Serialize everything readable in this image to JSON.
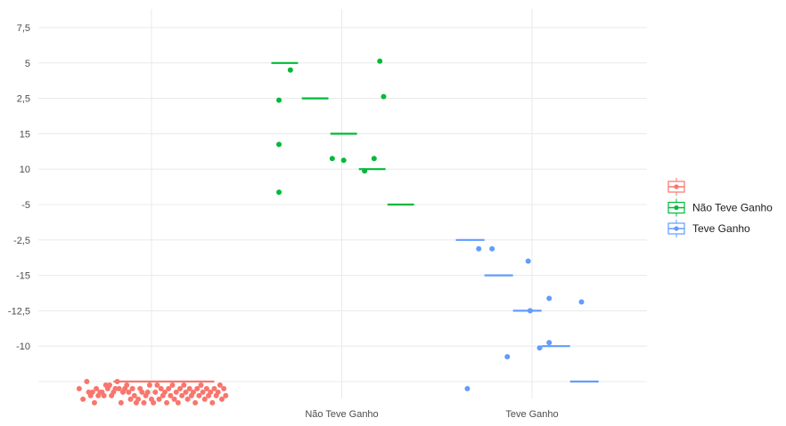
{
  "chart_data": {
    "type": "scatter",
    "title": "",
    "xlabel": "",
    "ylabel": "",
    "grid": true,
    "legend_position": "right",
    "categories": [
      "",
      "Não Teve Ganho",
      "Teve Ganho"
    ],
    "y_ticks": [
      "7,5",
      "5",
      "2,5",
      "15",
      "10",
      "-5",
      "-2,5",
      "-15",
      "-12,5",
      "-10",
      ""
    ],
    "series": [
      {
        "name": "",
        "color": "#F8766D",
        "category": "",
        "points": [
          {
            "x": -0.38,
            "level": 10.2
          },
          {
            "x": -0.36,
            "level": 10.5
          },
          {
            "x": -0.34,
            "level": 10.0
          },
          {
            "x": -0.33,
            "level": 10.3
          },
          {
            "x": -0.32,
            "level": 10.4
          },
          {
            "x": -0.31,
            "level": 10.3
          },
          {
            "x": -0.3,
            "level": 10.6
          },
          {
            "x": -0.29,
            "level": 10.2
          },
          {
            "x": -0.28,
            "level": 10.4
          },
          {
            "x": -0.27,
            "level": 10.3
          },
          {
            "x": -0.26,
            "level": 10.3
          },
          {
            "x": -0.25,
            "level": 10.4
          },
          {
            "x": -0.24,
            "level": 10.1
          },
          {
            "x": -0.23,
            "level": 10.2
          },
          {
            "x": -0.22,
            "level": 10.1
          },
          {
            "x": -0.21,
            "level": 10.4
          },
          {
            "x": -0.2,
            "level": 10.3
          },
          {
            "x": -0.19,
            "level": 10.2
          },
          {
            "x": -0.18,
            "level": 10.0
          },
          {
            "x": -0.17,
            "level": 10.2
          },
          {
            "x": -0.16,
            "level": 10.6
          },
          {
            "x": -0.15,
            "level": 10.3
          },
          {
            "x": -0.14,
            "level": 10.2
          },
          {
            "x": -0.13,
            "level": 10.1
          },
          {
            "x": -0.12,
            "level": 10.3
          },
          {
            "x": -0.11,
            "level": 10.5
          },
          {
            "x": -0.1,
            "level": 10.2
          },
          {
            "x": -0.09,
            "level": 10.4
          },
          {
            "x": -0.08,
            "level": 10.6
          },
          {
            "x": -0.07,
            "level": 10.5
          },
          {
            "x": -0.06,
            "level": 10.2
          },
          {
            "x": -0.05,
            "level": 10.3
          },
          {
            "x": -0.04,
            "level": 10.6
          },
          {
            "x": -0.03,
            "level": 10.4
          },
          {
            "x": -0.02,
            "level": 10.3
          },
          {
            "x": -0.01,
            "level": 10.1
          },
          {
            "x": 0.0,
            "level": 10.5
          },
          {
            "x": 0.01,
            "level": 10.6
          },
          {
            "x": 0.02,
            "level": 10.3
          },
          {
            "x": 0.03,
            "level": 10.1
          },
          {
            "x": 0.04,
            "level": 10.5
          },
          {
            "x": 0.05,
            "level": 10.2
          },
          {
            "x": 0.06,
            "level": 10.4
          },
          {
            "x": 0.07,
            "level": 10.3
          },
          {
            "x": 0.08,
            "level": 10.6
          },
          {
            "x": 0.09,
            "level": 10.2
          },
          {
            "x": 0.1,
            "level": 10.4
          },
          {
            "x": 0.11,
            "level": 10.1
          },
          {
            "x": 0.12,
            "level": 10.5
          },
          {
            "x": 0.13,
            "level": 10.3
          },
          {
            "x": 0.14,
            "level": 10.6
          },
          {
            "x": 0.15,
            "level": 10.2
          },
          {
            "x": 0.16,
            "level": 10.4
          },
          {
            "x": 0.17,
            "level": 10.1
          },
          {
            "x": 0.18,
            "level": 10.3
          },
          {
            "x": 0.19,
            "level": 10.5
          },
          {
            "x": 0.2,
            "level": 10.2
          },
          {
            "x": 0.21,
            "level": 10.4
          },
          {
            "x": 0.22,
            "level": 10.3
          },
          {
            "x": 0.23,
            "level": 10.6
          },
          {
            "x": 0.24,
            "level": 10.2
          },
          {
            "x": 0.25,
            "level": 10.4
          },
          {
            "x": 0.26,
            "level": 10.1
          },
          {
            "x": 0.27,
            "level": 10.3
          },
          {
            "x": 0.28,
            "level": 10.5
          },
          {
            "x": 0.29,
            "level": 10.2
          },
          {
            "x": 0.3,
            "level": 10.4
          },
          {
            "x": 0.31,
            "level": 10.3
          },
          {
            "x": 0.32,
            "level": 10.6
          },
          {
            "x": 0.33,
            "level": 10.2
          },
          {
            "x": 0.34,
            "level": 10.4
          },
          {
            "x": 0.35,
            "level": 10.3
          },
          {
            "x": 0.36,
            "level": 10.1
          },
          {
            "x": 0.37,
            "level": 10.5
          },
          {
            "x": 0.38,
            "level": 10.2
          },
          {
            "x": 0.39,
            "level": 10.4
          }
        ],
        "medians": [
          {
            "x0": -0.2,
            "x1": 0.33,
            "level": 10.0
          }
        ]
      },
      {
        "name": "Não Teve Ganho",
        "color": "#00BA38",
        "category": "Não Teve Ganho",
        "points": [
          {
            "x": 0.67,
            "level": 4.65
          },
          {
            "x": 0.67,
            "level": 3.3
          },
          {
            "x": 0.67,
            "level": 2.05
          },
          {
            "x": 0.73,
            "level": 1.2
          },
          {
            "x": 0.95,
            "level": 3.7
          },
          {
            "x": 1.01,
            "level": 3.75
          },
          {
            "x": 1.12,
            "level": 4.05
          },
          {
            "x": 1.17,
            "level": 3.7
          },
          {
            "x": 1.22,
            "level": 1.95
          },
          {
            "x": 1.2,
            "level": 0.95
          }
        ],
        "medians": [
          {
            "x0": 0.63,
            "x1": 0.77,
            "level": 1.0
          },
          {
            "x0": 0.79,
            "x1": 0.93,
            "level": 2.0
          },
          {
            "x0": 0.94,
            "x1": 1.08,
            "level": 3.0
          },
          {
            "x0": 1.09,
            "x1": 1.23,
            "level": 4.0
          },
          {
            "x0": 1.24,
            "x1": 1.38,
            "level": 5.0
          }
        ]
      },
      {
        "name": "Teve Ganho",
        "color": "#619CFF",
        "category": "Teve Ganho",
        "points": [
          {
            "x": 1.66,
            "level": 10.2
          },
          {
            "x": 1.72,
            "level": 6.25
          },
          {
            "x": 1.79,
            "level": 6.25
          },
          {
            "x": 1.87,
            "level": 9.3
          },
          {
            "x": 1.98,
            "level": 6.6
          },
          {
            "x": 1.99,
            "level": 8.0
          },
          {
            "x": 2.04,
            "level": 9.05
          },
          {
            "x": 2.09,
            "level": 8.9
          },
          {
            "x": 2.09,
            "level": 7.65
          },
          {
            "x": 2.26,
            "level": 7.75
          }
        ],
        "medians": [
          {
            "x0": 1.6,
            "x1": 1.75,
            "level": 6.0
          },
          {
            "x0": 1.75,
            "x1": 1.9,
            "level": 7.0
          },
          {
            "x0": 1.9,
            "x1": 2.05,
            "level": 8.0
          },
          {
            "x0": 2.05,
            "x1": 2.2,
            "level": 9.0
          },
          {
            "x0": 2.2,
            "x1": 2.35,
            "level": 10.0
          }
        ]
      }
    ]
  }
}
